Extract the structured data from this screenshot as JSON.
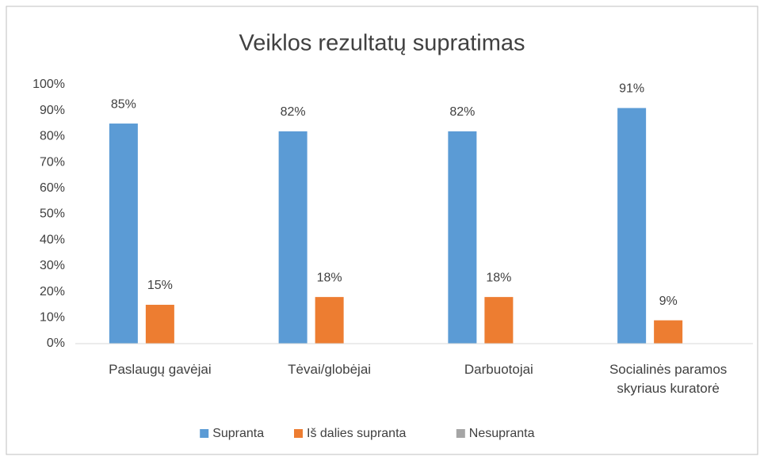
{
  "chart_data": {
    "type": "bar",
    "title": "Veiklos rezultatų supratimas",
    "categories": [
      "Paslaugų gavėjai",
      "Tėvai/globėjai",
      "Darbuotojai",
      "Socialinės paramos skyriaus kuratorė"
    ],
    "series": [
      {
        "name": "Supranta",
        "color": "#5b9bd5",
        "values": [
          85,
          82,
          82,
          91
        ],
        "value_labels": [
          "85%",
          "82%",
          "82%",
          "91%"
        ]
      },
      {
        "name": "Iš dalies supranta",
        "color": "#ed7d31",
        "values": [
          15,
          18,
          18,
          9
        ],
        "value_labels": [
          "15%",
          "18%",
          "18%",
          "9%"
        ]
      },
      {
        "name": "Nesupranta",
        "color": "#a5a5a5",
        "values": [
          0,
          0,
          0,
          0
        ]
      }
    ],
    "ylim": [
      0,
      100
    ],
    "yticks": [
      {
        "value": 0,
        "label": "0%"
      },
      {
        "value": 10,
        "label": "10%"
      },
      {
        "value": 20,
        "label": "20%"
      },
      {
        "value": 30,
        "label": "30%"
      },
      {
        "value": 40,
        "label": "40%"
      },
      {
        "value": 50,
        "label": "50%"
      },
      {
        "value": 60,
        "label": "60%"
      },
      {
        "value": 70,
        "label": "70%"
      },
      {
        "value": 80,
        "label": "80%"
      },
      {
        "value": 90,
        "label": "90%"
      },
      {
        "value": 100,
        "label": "100%"
      }
    ],
    "grid": false,
    "legend": "bottom"
  }
}
